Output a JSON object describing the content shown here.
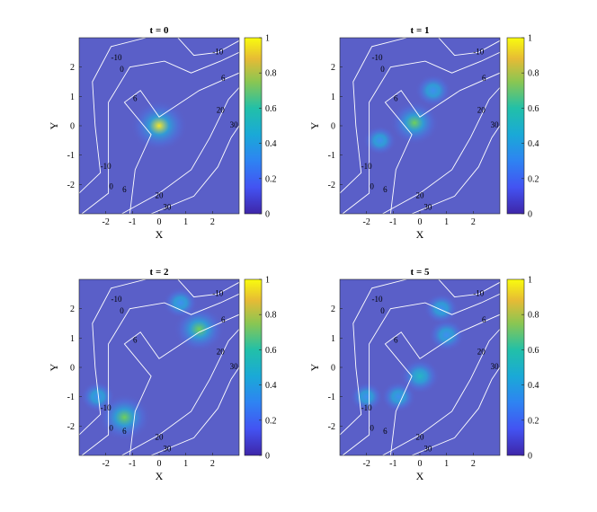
{
  "figure": {
    "colorbar_ticks": [
      "0",
      "0.2",
      "0.4",
      "0.6",
      "0.8",
      "1"
    ],
    "x_ticks": [
      "-2",
      "-1",
      "0",
      "1",
      "2"
    ],
    "y_ticks": [
      "2",
      "1",
      "0",
      "-1",
      "-2"
    ],
    "xlabel": "X",
    "ylabel": "Y",
    "background_color": "#5a5fc8",
    "contour_color": "#ffffff"
  },
  "chart_data": [
    {
      "type": "heatmap",
      "title": "t = 0",
      "xlabel": "X",
      "ylabel": "Y",
      "xlim": [
        -3,
        3
      ],
      "ylim": [
        -3,
        3
      ],
      "clim": [
        0,
        1
      ],
      "colormap": "parula",
      "contour_levels": [
        {
          "label": "-10",
          "value": -10
        },
        {
          "label": "0",
          "value": 0
        },
        {
          "label": "6",
          "value": 6
        },
        {
          "label": "20",
          "value": 20
        },
        {
          "label": "30",
          "value": 30
        }
      ],
      "peaks": [
        {
          "x": 0.0,
          "y": 0.0,
          "intensity": 1.0
        }
      ]
    },
    {
      "type": "heatmap",
      "title": "t = 1",
      "xlabel": "X",
      "ylabel": "Y",
      "xlim": [
        -3,
        3
      ],
      "ylim": [
        -3,
        3
      ],
      "clim": [
        0,
        1
      ],
      "colormap": "parula",
      "contour_levels": [
        {
          "label": "-10",
          "value": -10
        },
        {
          "label": "0",
          "value": 0
        },
        {
          "label": "6",
          "value": 6
        },
        {
          "label": "20",
          "value": 20
        },
        {
          "label": "30",
          "value": 30
        }
      ],
      "peaks": [
        {
          "x": -0.2,
          "y": 0.1,
          "intensity": 0.75
        },
        {
          "x": 0.5,
          "y": 1.2,
          "intensity": 0.35
        },
        {
          "x": -1.5,
          "y": -0.5,
          "intensity": 0.25
        }
      ]
    },
    {
      "type": "heatmap",
      "title": "t = 2",
      "xlabel": "X",
      "ylabel": "Y",
      "xlim": [
        -3,
        3
      ],
      "ylim": [
        -3,
        3
      ],
      "clim": [
        0,
        1
      ],
      "colormap": "parula",
      "contour_levels": [
        {
          "label": "-10",
          "value": -10
        },
        {
          "label": "0",
          "value": 0
        },
        {
          "label": "6",
          "value": 6
        },
        {
          "label": "20",
          "value": 20
        },
        {
          "label": "30",
          "value": 30
        }
      ],
      "peaks": [
        {
          "x": 1.5,
          "y": 1.3,
          "intensity": 0.8
        },
        {
          "x": -1.3,
          "y": -1.7,
          "intensity": 0.85
        },
        {
          "x": 0.8,
          "y": 2.2,
          "intensity": 0.3
        },
        {
          "x": -2.3,
          "y": -1.0,
          "intensity": 0.3
        }
      ]
    },
    {
      "type": "heatmap",
      "title": "t = 5",
      "xlabel": "X",
      "ylabel": "Y",
      "xlim": [
        -3,
        3
      ],
      "ylim": [
        -3,
        3
      ],
      "clim": [
        0,
        1
      ],
      "colormap": "parula",
      "contour_levels": [
        {
          "label": "-10",
          "value": -10
        },
        {
          "label": "0",
          "value": 0
        },
        {
          "label": "6",
          "value": 6
        },
        {
          "label": "20",
          "value": 20
        },
        {
          "label": "30",
          "value": 30
        }
      ],
      "peaks": [
        {
          "x": 0.0,
          "y": -0.3,
          "intensity": 0.45
        },
        {
          "x": 1.0,
          "y": 1.1,
          "intensity": 0.35
        },
        {
          "x": -0.8,
          "y": -1.0,
          "intensity": 0.3
        },
        {
          "x": 0.8,
          "y": 2.0,
          "intensity": 0.3
        },
        {
          "x": -2.0,
          "y": -1.0,
          "intensity": 0.25
        }
      ]
    }
  ]
}
